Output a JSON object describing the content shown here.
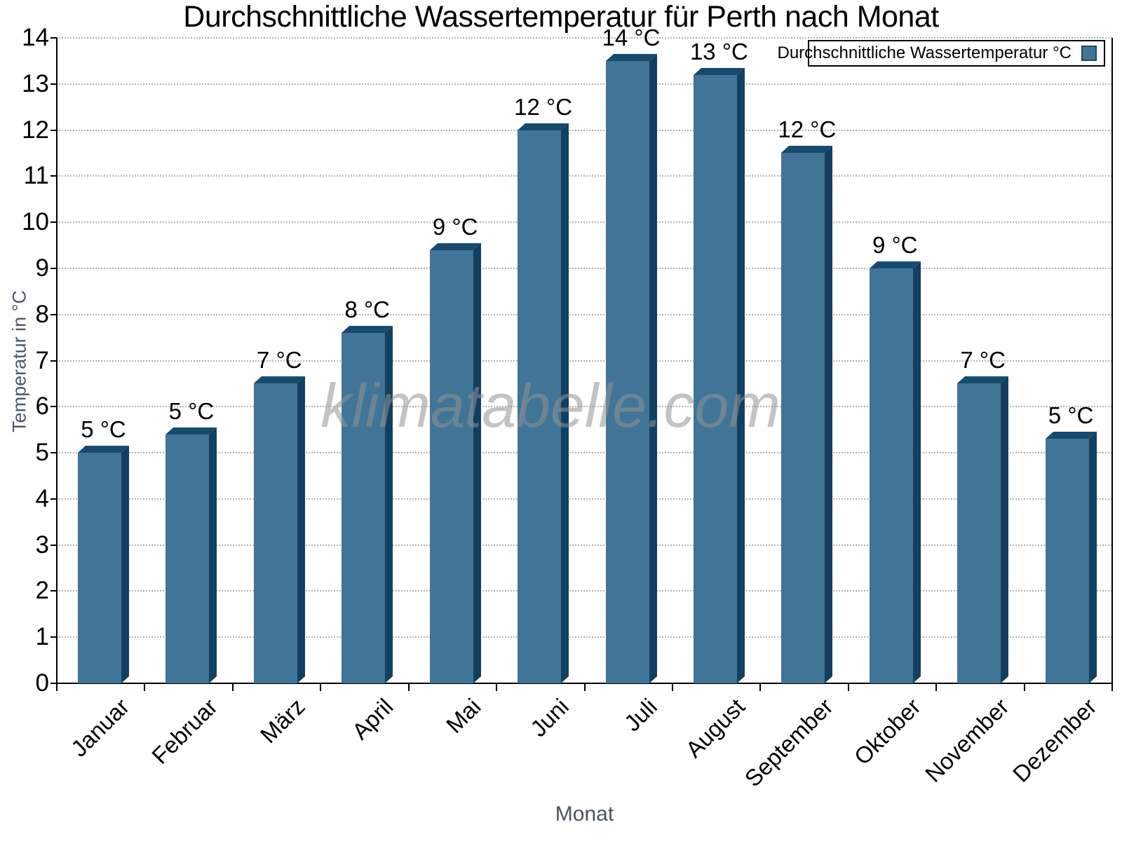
{
  "chart_data": {
    "type": "bar",
    "title": "Durchschnittliche Wassertemperatur für Perth nach Monat",
    "xlabel": "Monat",
    "ylabel": "Temperatur in °C",
    "categories": [
      "Januar",
      "Februar",
      "März",
      "April",
      "Mai",
      "Juni",
      "Juli",
      "August",
      "September",
      "Oktober",
      "November",
      "Dezember"
    ],
    "series": [
      {
        "name": "Durchschnittliche Wassertemperatur °C",
        "values": [
          5.0,
          5.4,
          6.5,
          7.6,
          9.4,
          12.0,
          13.5,
          13.2,
          11.5,
          9.0,
          6.5,
          5.3
        ],
        "bar_labels": [
          "5 °C",
          "5 °C",
          "7 °C",
          "8 °C",
          "9 °C",
          "12 °C",
          "14 °C",
          "13 °C",
          "12 °C",
          "9 °C",
          "7 °C",
          "5 °C"
        ]
      }
    ],
    "ylim": [
      0,
      14
    ],
    "ytick_step": 1,
    "grid": "horizontal-dotted",
    "legend_position": "top-right",
    "colors": {
      "bar_front": "#407598",
      "bar_top": "#174a6d",
      "bar_side": "#123f5f",
      "grid_line": "#b4b4b4",
      "axis": "#000000",
      "axis_title_text": "#4d5866"
    }
  },
  "legend": {
    "label": "Durchschnittliche Wassertemperatur °C"
  },
  "watermark": "klimatabelle.com"
}
